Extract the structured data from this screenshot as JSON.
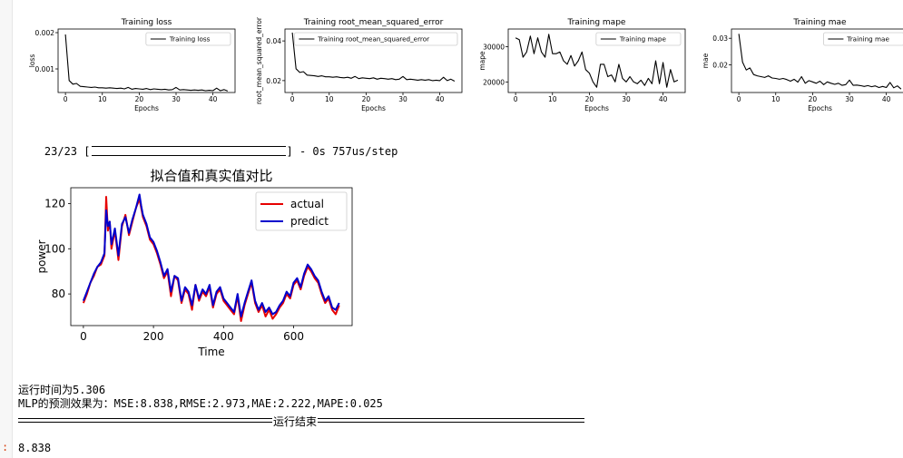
{
  "progress": {
    "batches": "23/23",
    "suffix": "] - 0s 757us/step",
    "open_bracket": "["
  },
  "colors": {
    "actual": "#e60000",
    "predict": "#0000cc",
    "prompt": "#d84315"
  },
  "output": {
    "runtime_line": "运行时间为5.306",
    "metrics_line": "MLP的预测效果为：MSE:8.838,RMSE:2.973,MAE:2.222,MAPE:0.025",
    "end_label": "运行结束",
    "prompt_marker": ":",
    "result_value": "8.838"
  },
  "chart_data": [
    {
      "type": "line",
      "title": "Training loss",
      "xlabel": "Epochs",
      "ylabel": "loss",
      "legend": [
        "Training loss"
      ],
      "legend_position": "top-right",
      "xlim": [
        -2,
        46
      ],
      "ylim": [
        0.00035,
        0.0021
      ],
      "xticks": [
        0,
        10,
        20,
        30,
        40
      ],
      "yticks": [
        0.001,
        0.002
      ],
      "ytick_labels": [
        "0.001",
        "0.002"
      ],
      "series": [
        {
          "name": "Training loss",
          "x": [
            0,
            1,
            2,
            3,
            4,
            5,
            6,
            7,
            8,
            9,
            10,
            11,
            12,
            13,
            14,
            15,
            16,
            17,
            18,
            19,
            20,
            21,
            22,
            23,
            24,
            25,
            26,
            27,
            28,
            29,
            30,
            31,
            32,
            33,
            34,
            35,
            36,
            37,
            38,
            39,
            40,
            41,
            42,
            43,
            44
          ],
          "values": [
            0.00195,
            0.00068,
            0.00058,
            0.0006,
            0.00052,
            0.00051,
            0.0005,
            0.00049,
            0.0005,
            0.00048,
            0.00048,
            0.00047,
            0.00048,
            0.00047,
            0.00046,
            0.00047,
            0.00045,
            0.00049,
            0.00044,
            0.00046,
            0.00045,
            0.00044,
            0.00046,
            0.00043,
            0.00045,
            0.00044,
            0.00043,
            0.00044,
            0.00042,
            0.00043,
            0.00049,
            0.00042,
            0.00043,
            0.00042,
            0.00041,
            0.00042,
            0.00041,
            0.00042,
            0.0004,
            0.00041,
            0.0004,
            0.00047,
            0.0004,
            0.00043,
            0.00039
          ]
        }
      ]
    },
    {
      "type": "line",
      "title": "Training root_mean_squared_error",
      "xlabel": "Epochs",
      "ylabel": "root_mean_squared_error",
      "legend": [
        "Training root_mean_squared_error"
      ],
      "legend_position": "top-right",
      "xlim": [
        -2,
        46
      ],
      "ylim": [
        0.014,
        0.046
      ],
      "xticks": [
        0,
        10,
        20,
        30,
        40
      ],
      "yticks": [
        0.02,
        0.04
      ],
      "ytick_labels": [
        "0.02",
        "0.04"
      ],
      "series": [
        {
          "name": "Training root_mean_squared_error",
          "x": [
            0,
            1,
            2,
            3,
            4,
            5,
            6,
            7,
            8,
            9,
            10,
            11,
            12,
            13,
            14,
            15,
            16,
            17,
            18,
            19,
            20,
            21,
            22,
            23,
            24,
            25,
            26,
            27,
            28,
            29,
            30,
            31,
            32,
            33,
            34,
            35,
            36,
            37,
            38,
            39,
            40,
            41,
            42,
            43,
            44
          ],
          "values": [
            0.0442,
            0.026,
            0.0241,
            0.0245,
            0.0228,
            0.0226,
            0.0224,
            0.0221,
            0.0224,
            0.0219,
            0.0219,
            0.0217,
            0.0219,
            0.0216,
            0.0214,
            0.0217,
            0.0212,
            0.0221,
            0.021,
            0.0214,
            0.0212,
            0.021,
            0.0214,
            0.0207,
            0.0212,
            0.021,
            0.0207,
            0.021,
            0.0205,
            0.0207,
            0.0221,
            0.0205,
            0.0207,
            0.0205,
            0.0202,
            0.0205,
            0.0202,
            0.0205,
            0.02,
            0.0202,
            0.02,
            0.0217,
            0.02,
            0.0207,
            0.0197
          ]
        }
      ]
    },
    {
      "type": "line",
      "title": "Training mape",
      "xlabel": "Epochs",
      "ylabel": "mape",
      "legend": [
        "Training mape"
      ],
      "legend_position": "top-right",
      "xlim": [
        -2,
        46
      ],
      "ylim": [
        17000,
        35000
      ],
      "xticks": [
        0,
        10,
        20,
        30,
        40
      ],
      "yticks": [
        20000,
        30000
      ],
      "ytick_labels": [
        "20000",
        "30000"
      ],
      "series": [
        {
          "name": "Training mape",
          "x": [
            0,
            1,
            2,
            3,
            4,
            5,
            6,
            7,
            8,
            9,
            10,
            11,
            12,
            13,
            14,
            15,
            16,
            17,
            18,
            19,
            20,
            21,
            22,
            23,
            24,
            25,
            26,
            27,
            28,
            29,
            30,
            31,
            32,
            33,
            34,
            35,
            36,
            37,
            38,
            39,
            40,
            41,
            42,
            43,
            44
          ],
          "values": [
            32500,
            32000,
            27000,
            28500,
            33000,
            28000,
            32500,
            28500,
            27000,
            33500,
            28000,
            28000,
            28500,
            26000,
            25000,
            27500,
            24500,
            26000,
            28500,
            23500,
            22500,
            20000,
            18500,
            25000,
            25000,
            21500,
            22000,
            20000,
            25000,
            21000,
            20000,
            21500,
            20000,
            19500,
            20500,
            19000,
            21000,
            19500,
            26000,
            19500,
            25500,
            18500,
            23500,
            20000,
            20500
          ]
        }
      ]
    },
    {
      "type": "line",
      "title": "Training mae",
      "xlabel": "Epochs",
      "ylabel": "mae",
      "legend": [
        "Training mae"
      ],
      "legend_position": "top-right",
      "xlim": [
        -2,
        46
      ],
      "ylim": [
        0.0095,
        0.0335
      ],
      "xticks": [
        0,
        10,
        20,
        30,
        40
      ],
      "yticks": [
        0.02,
        0.03
      ],
      "ytick_labels": [
        "0.02",
        "0.03"
      ],
      "series": [
        {
          "name": "Training mae",
          "x": [
            0,
            1,
            2,
            3,
            4,
            5,
            6,
            7,
            8,
            9,
            10,
            11,
            12,
            13,
            14,
            15,
            16,
            17,
            18,
            19,
            20,
            21,
            22,
            23,
            24,
            25,
            26,
            27,
            28,
            29,
            30,
            31,
            32,
            33,
            34,
            35,
            36,
            37,
            38,
            39,
            40,
            41,
            42,
            43,
            44
          ],
          "values": [
            0.0317,
            0.021,
            0.018,
            0.0188,
            0.0163,
            0.0158,
            0.0155,
            0.0152,
            0.0158,
            0.015,
            0.0148,
            0.0145,
            0.0148,
            0.0144,
            0.0138,
            0.0145,
            0.0134,
            0.0155,
            0.013,
            0.014,
            0.0135,
            0.013,
            0.0138,
            0.0125,
            0.0135,
            0.013,
            0.0126,
            0.013,
            0.0122,
            0.0125,
            0.0142,
            0.0122,
            0.0123,
            0.0121,
            0.0118,
            0.0121,
            0.0117,
            0.012,
            0.0114,
            0.0118,
            0.0114,
            0.0133,
            0.0113,
            0.012,
            0.0108
          ]
        }
      ]
    },
    {
      "type": "line",
      "title": "拟合值和真实值对比",
      "xlabel": "Time",
      "ylabel": "power",
      "legend": [
        "actual",
        "predict"
      ],
      "legend_position": "top-right",
      "xlim": [
        -36,
        767
      ],
      "ylim": [
        66,
        127
      ],
      "xticks": [
        0,
        200,
        400,
        600
      ],
      "yticks": [
        80,
        100,
        120
      ],
      "series": [
        {
          "name": "actual",
          "x": [
            0,
            10,
            20,
            30,
            40,
            50,
            60,
            65,
            70,
            75,
            80,
            90,
            100,
            110,
            120,
            130,
            140,
            150,
            160,
            165,
            170,
            180,
            190,
            200,
            210,
            220,
            230,
            240,
            250,
            260,
            270,
            280,
            290,
            300,
            310,
            320,
            330,
            340,
            350,
            360,
            370,
            380,
            390,
            400,
            410,
            420,
            430,
            440,
            450,
            460,
            470,
            480,
            490,
            500,
            510,
            520,
            530,
            540,
            550,
            560,
            570,
            580,
            590,
            600,
            610,
            620,
            630,
            640,
            650,
            660,
            670,
            680,
            690,
            700,
            710,
            720,
            730
          ],
          "values": [
            76,
            80,
            85,
            88,
            92,
            93,
            97,
            123,
            108,
            112,
            100,
            108,
            95,
            110,
            115,
            106,
            112,
            118,
            122,
            118,
            114,
            110,
            104,
            102,
            98,
            93,
            87,
            90,
            79,
            88,
            86,
            76,
            82,
            80,
            73,
            84,
            77,
            81,
            79,
            83,
            74,
            80,
            82,
            77,
            75,
            73,
            71,
            79,
            68,
            75,
            80,
            85,
            76,
            72,
            75,
            70,
            73,
            69,
            71,
            74,
            76,
            80,
            78,
            84,
            86,
            82,
            88,
            92,
            90,
            87,
            85,
            80,
            76,
            78,
            73,
            71,
            75
          ]
        },
        {
          "name": "predict",
          "x": [
            0,
            10,
            20,
            30,
            40,
            50,
            60,
            65,
            70,
            75,
            80,
            90,
            100,
            110,
            120,
            130,
            140,
            150,
            160,
            165,
            170,
            180,
            190,
            200,
            210,
            220,
            230,
            240,
            250,
            260,
            270,
            280,
            290,
            300,
            310,
            320,
            330,
            340,
            350,
            360,
            370,
            380,
            390,
            400,
            410,
            420,
            430,
            440,
            450,
            460,
            470,
            480,
            490,
            500,
            510,
            520,
            530,
            540,
            550,
            560,
            570,
            580,
            590,
            600,
            610,
            620,
            630,
            640,
            650,
            660,
            670,
            680,
            690,
            700,
            710,
            720,
            730
          ],
          "values": [
            77,
            81,
            85,
            89,
            92,
            94,
            98,
            117,
            110,
            112,
            102,
            109,
            97,
            111,
            114,
            107,
            113,
            118,
            124,
            119,
            115,
            111,
            105,
            103,
            99,
            94,
            88,
            91,
            81,
            88,
            87,
            77,
            83,
            81,
            75,
            84,
            78,
            82,
            80,
            84,
            75,
            81,
            83,
            78,
            76,
            74,
            72,
            80,
            70,
            76,
            81,
            86,
            77,
            73,
            76,
            72,
            74,
            71,
            72,
            75,
            77,
            81,
            79,
            85,
            87,
            83,
            89,
            93,
            91,
            88,
            86,
            81,
            77,
            79,
            74,
            73,
            76
          ]
        }
      ]
    }
  ]
}
